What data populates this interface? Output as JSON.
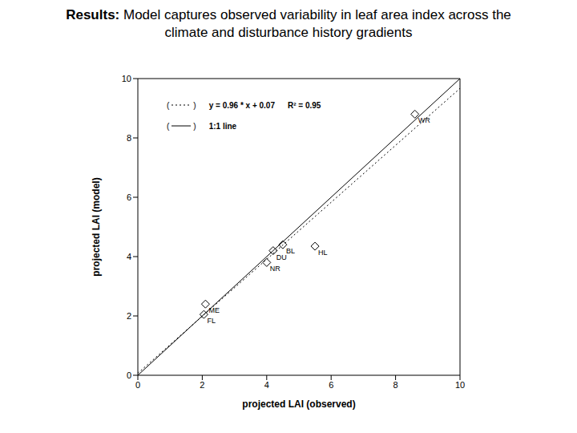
{
  "chart_data": {
    "type": "scatter",
    "title_lead": "Results:",
    "title": "Model captures observed variability in leaf area index across the climate and disturbance history gradients",
    "x_label": "projected LAI (observed)",
    "y_label": "projected LAI (model)",
    "xlim": [
      0,
      10
    ],
    "ylim": [
      0,
      10
    ],
    "xticks": [
      0,
      2,
      4,
      6,
      8,
      10
    ],
    "yticks": [
      0,
      2,
      4,
      6,
      8,
      10
    ],
    "legend": "upper left",
    "series": [
      {
        "type": "scatter",
        "marker": "diamond",
        "color": "#000000",
        "x": [
          8.6,
          4.5,
          4.2,
          5.5,
          4.0,
          2.1,
          2.05
        ],
        "values": [
          8.8,
          4.4,
          4.2,
          4.35,
          3.8,
          2.4,
          2.05
        ],
        "point_labels": [
          "WR",
          "BL",
          "DU",
          "HL",
          "NR",
          "ME",
          "FL"
        ]
      },
      {
        "name": "y = 0.96 * x + 0.07",
        "annotation": "R² = 0.95",
        "type": "line",
        "line_style": "dotted",
        "color": "#000000",
        "x": [
          0,
          10
        ],
        "values": [
          0.07,
          9.67
        ]
      },
      {
        "name": "1:1 line",
        "type": "line",
        "line_style": "solid",
        "color": "#000000",
        "x": [
          0,
          10
        ],
        "values": [
          0,
          10
        ]
      }
    ]
  }
}
